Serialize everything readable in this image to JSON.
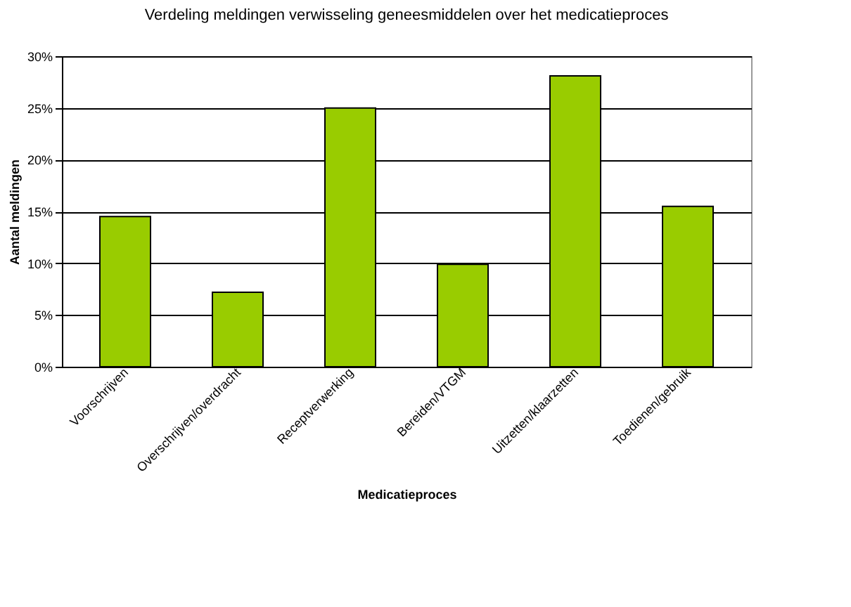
{
  "chart_data": {
    "type": "bar",
    "title": "Verdeling meldingen verwisseling geneesmiddelen over het medicatieproces",
    "xlabel": "Medicatieproces",
    "ylabel": "Aantal meldingen",
    "categories": [
      "Voorschrijven",
      "Overschrijven/overdracht",
      "Receptverwerking",
      "Bereiden/VTGM",
      "Uitzetten/klaarzetten",
      "Toedienen/gebruik"
    ],
    "values": [
      14.5,
      7.2,
      25,
      9.9,
      28.1,
      15.5
    ],
    "color": "#99cc00",
    "ylim": [
      0,
      30
    ],
    "yticks": [
      {
        "value": 0,
        "label": "0%"
      },
      {
        "value": 5,
        "label": "5%"
      },
      {
        "value": 10,
        "label": "10%"
      },
      {
        "value": 15,
        "label": "15%"
      },
      {
        "value": 20,
        "label": "20%"
      },
      {
        "value": 25,
        "label": "25%"
      },
      {
        "value": 30,
        "label": "30%"
      }
    ],
    "grid": "y"
  }
}
